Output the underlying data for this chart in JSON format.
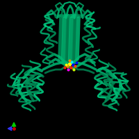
{
  "background_color": "#000000",
  "fig_width": 2.0,
  "fig_height": 2.0,
  "dpi": 100,
  "protein_color_main": "#00b873",
  "protein_color_dark": "#008f58",
  "protein_color_light": "#00d688",
  "axis_arrow_blue": "#3333ff",
  "axis_arrow_green": "#00cc00",
  "axis_arrow_red": "#cc0000",
  "ligand_colors": [
    "#ffff00",
    "#ff8800",
    "#ff2200",
    "#0000ff",
    "#00eeff",
    "#ff00ff",
    "#ccff00",
    "#ff4400"
  ]
}
